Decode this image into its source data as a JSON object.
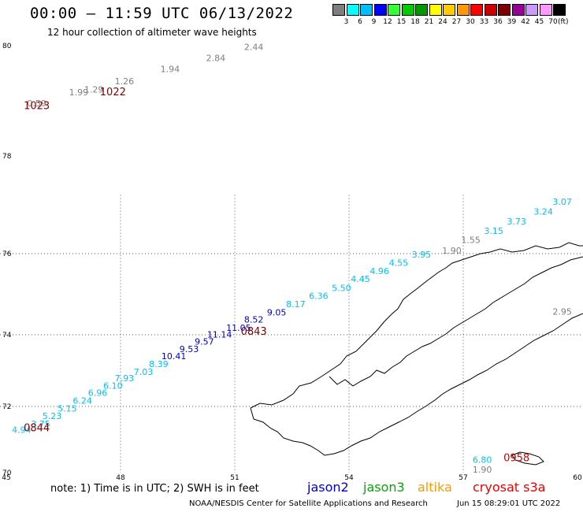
{
  "title": "00:00 – 11:59 UTC 06/13/2022",
  "subtitle": "12 hour collection of altimeter wave heights",
  "colorbar": {
    "colors": [
      "#7f7f7f",
      "#00ffff",
      "#00bfff",
      "#0000ff",
      "#33ff33",
      "#00cc00",
      "#009900",
      "#ffff00",
      "#ffcc00",
      "#ff9900",
      "#ff0000",
      "#cc0000",
      "#800000",
      "#990099",
      "#cc99ff",
      "#ff99ff",
      "#000000"
    ],
    "labels": [
      "3",
      "6",
      "9",
      "12",
      "15",
      "18",
      "21",
      "24",
      "27",
      "30",
      "33",
      "36",
      "39",
      "42",
      "45",
      "70"
    ],
    "unit": "(ft)"
  },
  "map": {
    "lon_ticks": [
      "45",
      "48",
      "51",
      "54",
      "57",
      "60"
    ],
    "lat_ticks": [
      "70",
      "72",
      "74",
      "76",
      "78",
      "80"
    ],
    "grid_lons": [
      48,
      51,
      54,
      57
    ],
    "grid_lats": [
      72,
      74,
      76
    ]
  },
  "observations": [
    {
      "t": "0.59",
      "lon": 45.8,
      "lat": 78.9,
      "c": "#7f7f7f"
    },
    {
      "t": "1.99",
      "lon": 46.9,
      "lat": 79.1,
      "c": "#7f7f7f"
    },
    {
      "t": "1.29",
      "lon": 47.3,
      "lat": 79.15,
      "c": "#7f7f7f"
    },
    {
      "t": "1.26",
      "lon": 48.1,
      "lat": 79.3,
      "c": "#7f7f7f"
    },
    {
      "t": "1.94",
      "lon": 49.3,
      "lat": 79.52,
      "c": "#7f7f7f"
    },
    {
      "t": "2.84",
      "lon": 50.5,
      "lat": 79.72,
      "c": "#7f7f7f"
    },
    {
      "t": "2.44",
      "lon": 51.5,
      "lat": 79.92,
      "c": "#7f7f7f"
    },
    {
      "t": "4.94",
      "lon": 45.4,
      "lat": 71.2,
      "c": "#00bfff"
    },
    {
      "t": "3.75",
      "lon": 45.9,
      "lat": 71.38,
      "c": "#00bfff"
    },
    {
      "t": "5.23",
      "lon": 46.2,
      "lat": 71.62,
      "c": "#00bfff"
    },
    {
      "t": "5.15",
      "lon": 46.6,
      "lat": 71.85,
      "c": "#00bfff"
    },
    {
      "t": "6.24",
      "lon": 47.0,
      "lat": 72.08,
      "c": "#00bfff"
    },
    {
      "t": "6.96",
      "lon": 47.4,
      "lat": 72.3,
      "c": "#00bfff"
    },
    {
      "t": "6.10",
      "lon": 47.8,
      "lat": 72.5,
      "c": "#00bfff"
    },
    {
      "t": "7.93",
      "lon": 48.1,
      "lat": 72.7,
      "c": "#00bfff"
    },
    {
      "t": "7.03",
      "lon": 48.6,
      "lat": 72.88,
      "c": "#00bfff"
    },
    {
      "t": "8.39",
      "lon": 49.0,
      "lat": 73.1,
      "c": "#00bfff"
    },
    {
      "t": "10.41",
      "lon": 49.4,
      "lat": 73.32,
      "c": "#0000cc"
    },
    {
      "t": "9.53",
      "lon": 49.8,
      "lat": 73.52,
      "c": "#0000cc"
    },
    {
      "t": "9.57",
      "lon": 50.2,
      "lat": 73.72,
      "c": "#0000cc"
    },
    {
      "t": "11.14",
      "lon": 50.6,
      "lat": 73.92,
      "c": "#0000cc"
    },
    {
      "t": "11.05",
      "lon": 51.1,
      "lat": 74.1,
      "c": "#0000cc"
    },
    {
      "t": "8.52",
      "lon": 51.5,
      "lat": 74.3,
      "c": "#0000cc"
    },
    {
      "t": "9.05",
      "lon": 52.1,
      "lat": 74.48,
      "c": "#0000cc"
    },
    {
      "t": "8.17",
      "lon": 52.6,
      "lat": 74.68,
      "c": "#00bfff"
    },
    {
      "t": "6.36",
      "lon": 53.2,
      "lat": 74.88,
      "c": "#00bfff"
    },
    {
      "t": "5.50",
      "lon": 53.8,
      "lat": 75.08,
      "c": "#00bfff"
    },
    {
      "t": "4.45",
      "lon": 54.3,
      "lat": 75.3,
      "c": "#00bfff"
    },
    {
      "t": "4.96",
      "lon": 54.8,
      "lat": 75.5,
      "c": "#00bfff"
    },
    {
      "t": "4.55",
      "lon": 55.3,
      "lat": 75.7,
      "c": "#00bfff"
    },
    {
      "t": "3.95",
      "lon": 55.9,
      "lat": 75.9,
      "c": "#00bfff"
    },
    {
      "t": "1.90",
      "lon": 56.7,
      "lat": 76.0,
      "c": "#7f7f7f"
    },
    {
      "t": "1.55",
      "lon": 57.2,
      "lat": 76.22,
      "c": "#7f7f7f"
    },
    {
      "t": "3.15",
      "lon": 57.8,
      "lat": 76.4,
      "c": "#00bfff"
    },
    {
      "t": "3.73",
      "lon": 58.4,
      "lat": 76.6,
      "c": "#00bfff"
    },
    {
      "t": "3.24",
      "lon": 59.1,
      "lat": 76.8,
      "c": "#00bfff"
    },
    {
      "t": "3.07",
      "lon": 59.6,
      "lat": 77.0,
      "c": "#00bfff"
    },
    {
      "t": "2.95",
      "lon": 59.6,
      "lat": 74.5,
      "c": "#7f7f7f"
    },
    {
      "t": "6.80",
      "lon": 57.5,
      "lat": 70.3,
      "c": "#00bfff"
    },
    {
      "t": "1.90",
      "lon": 57.5,
      "lat": 70.0,
      "c": "#7f7f7f"
    }
  ],
  "times": [
    {
      "t": "1023",
      "lon": 45.8,
      "lat": 78.85,
      "c": "#800000"
    },
    {
      "t": "1022",
      "lon": 47.8,
      "lat": 79.1,
      "c": "#800000"
    },
    {
      "t": "0843",
      "lon": 51.5,
      "lat": 74.0,
      "c": "#800000"
    },
    {
      "t": "0844",
      "lon": 45.8,
      "lat": 71.25,
      "c": "#800000"
    },
    {
      "t": "0958",
      "lon": 58.4,
      "lat": 70.35,
      "c": "#cc0000"
    }
  ],
  "footer": {
    "note": "note:  1) Time is in UTC;  2) SWH is in feet",
    "satellites": [
      {
        "name": "jason2",
        "color": "#0000cc"
      },
      {
        "name": "jason3",
        "color": "#00aa00"
      },
      {
        "name": "altika",
        "color": "#ff9900"
      },
      {
        "name": "cryosat s3a",
        "color": "#ee0000"
      }
    ],
    "credit": "NOAA/NESDIS Center for Satellite Applications and Research",
    "date": "Jun 15 08:29:01 UTC 2022"
  }
}
